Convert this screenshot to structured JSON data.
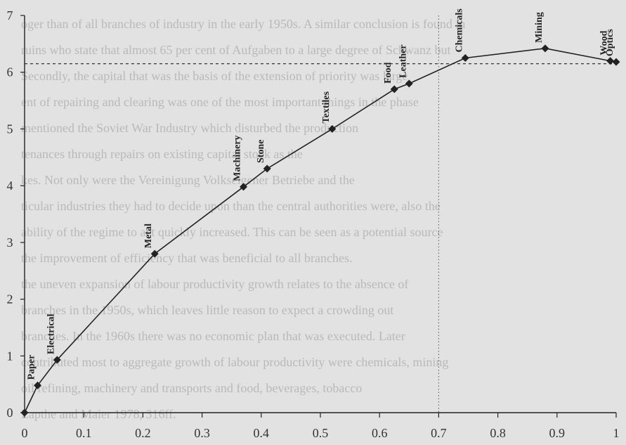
{
  "chart_data": {
    "type": "line",
    "title": "",
    "xlabel": "",
    "ylabel": "",
    "xlim": [
      0,
      1
    ],
    "ylim": [
      0,
      7
    ],
    "x_ticks": [
      "0",
      "0.1",
      "0.2",
      "0.3",
      "0.4",
      "0.5",
      "0.6",
      "0.7",
      "0.8",
      "0.9",
      "1"
    ],
    "y_ticks": [
      "0",
      "1",
      "2",
      "3",
      "4",
      "5",
      "6",
      "7"
    ],
    "reference_line": {
      "y": 6.15,
      "style": "dashed"
    },
    "reference_vline": {
      "x": 0.7,
      "style": "dotted"
    },
    "series": [
      {
        "points": [
          {
            "x": 0.0,
            "y": 0.0,
            "label": ""
          },
          {
            "x": 0.022,
            "y": 0.48,
            "label": "Paper"
          },
          {
            "x": 0.055,
            "y": 0.93,
            "label": "Electrical"
          },
          {
            "x": 0.22,
            "y": 2.8,
            "label": "Metal"
          },
          {
            "x": 0.37,
            "y": 3.98,
            "label": "Machinery"
          },
          {
            "x": 0.41,
            "y": 4.3,
            "label": "Stone"
          },
          {
            "x": 0.52,
            "y": 5.0,
            "label": "Textiles"
          },
          {
            "x": 0.625,
            "y": 5.7,
            "label": "Food"
          },
          {
            "x": 0.65,
            "y": 5.8,
            "label": "Leather"
          },
          {
            "x": 0.745,
            "y": 6.25,
            "label": "Chemicals"
          },
          {
            "x": 0.88,
            "y": 6.42,
            "label": "Mining"
          },
          {
            "x": 0.99,
            "y": 6.2,
            "label": "Wood"
          },
          {
            "x": 1.0,
            "y": 6.18,
            "label": "Optics"
          }
        ]
      }
    ]
  },
  "background_text": [
    "oger than of all branches of industry in the early 1950s. A similar conclusion is found in",
    "ruins who state that almost 65 per cent of Aufgaben to a large degree of Schwanz but",
    "Secondly, the capital that was the basis of the extension of priority was large",
    "ent of repairing and clearing was one of the most important things in the phase",
    "mentioned the Soviet War Industry which disturbed the production",
    "tenances through repairs on existing capital stock as the",
    "kes. Not only were the Vereinigung Volkseigener Betriebe and the",
    "ticular industries they had to decide upon than the central authorities were, also the",
    "ability of the regime to act quickly increased. This can be seen as a potential source",
    "the improvement of efficiency that was beneficial to all branches.",
    "the uneven expansion of labour productivity growth relates to the absence of",
    "branches in the 1950s, which leaves little reason to expect a crowding out",
    "branches. In the 1960s there was no economic plan that was executed. Later",
    "contributed most to aggregate growth of labour productivity were chemicals, mining",
    "oil refining, machinery and transports and food, beverages, tobacco",
    "Lapthe and Maier 1978, 316ff."
  ]
}
